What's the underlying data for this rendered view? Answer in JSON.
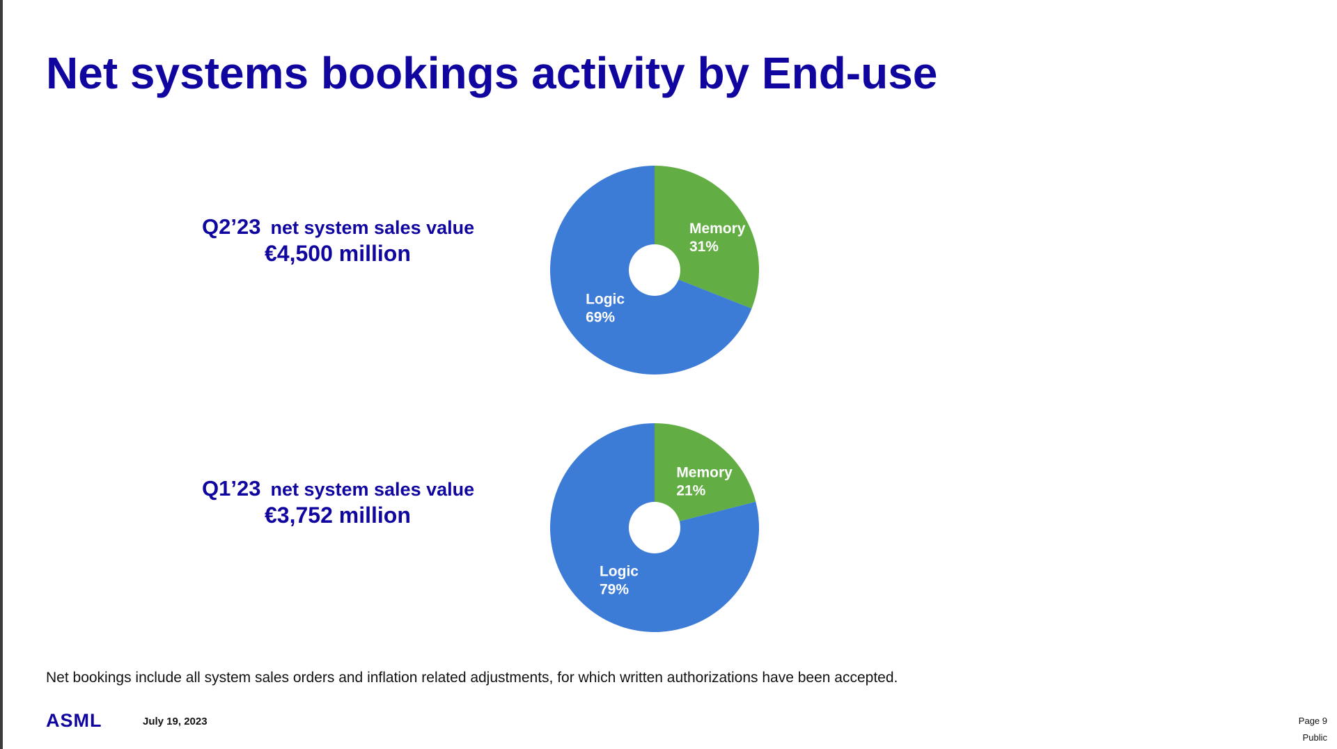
{
  "slide": {
    "title": "Net systems bookings activity by End-use",
    "footnote": "Net bookings include all system sales orders and inflation related adjustments, for which written authorizations have been accepted.",
    "logo_text": "ASML",
    "date": "July 19, 2023",
    "page": "Page 9",
    "classification": "Public"
  },
  "blocks": [
    {
      "quarter": "Q2’23",
      "description": "net system sales value",
      "value": "€4,500 million"
    },
    {
      "quarter": "Q1’23",
      "description": "net system sales value",
      "value": "€3,752 million"
    }
  ],
  "colors": {
    "title": "#10069f",
    "memory": "#62ae44",
    "logic": "#3d7cd6"
  },
  "chart_data": [
    {
      "type": "pie",
      "slices": [
        {
          "label": "Memory",
          "percent": "31%",
          "value": 31,
          "color": "#62ae44"
        },
        {
          "label": "Logic",
          "percent": "69%",
          "value": 69,
          "color": "#3d7cd6"
        }
      ]
    },
    {
      "type": "pie",
      "slices": [
        {
          "label": "Memory",
          "percent": "21%",
          "value": 21,
          "color": "#62ae44"
        },
        {
          "label": "Logic",
          "percent": "79%",
          "value": 79,
          "color": "#3d7cd6"
        }
      ]
    }
  ]
}
